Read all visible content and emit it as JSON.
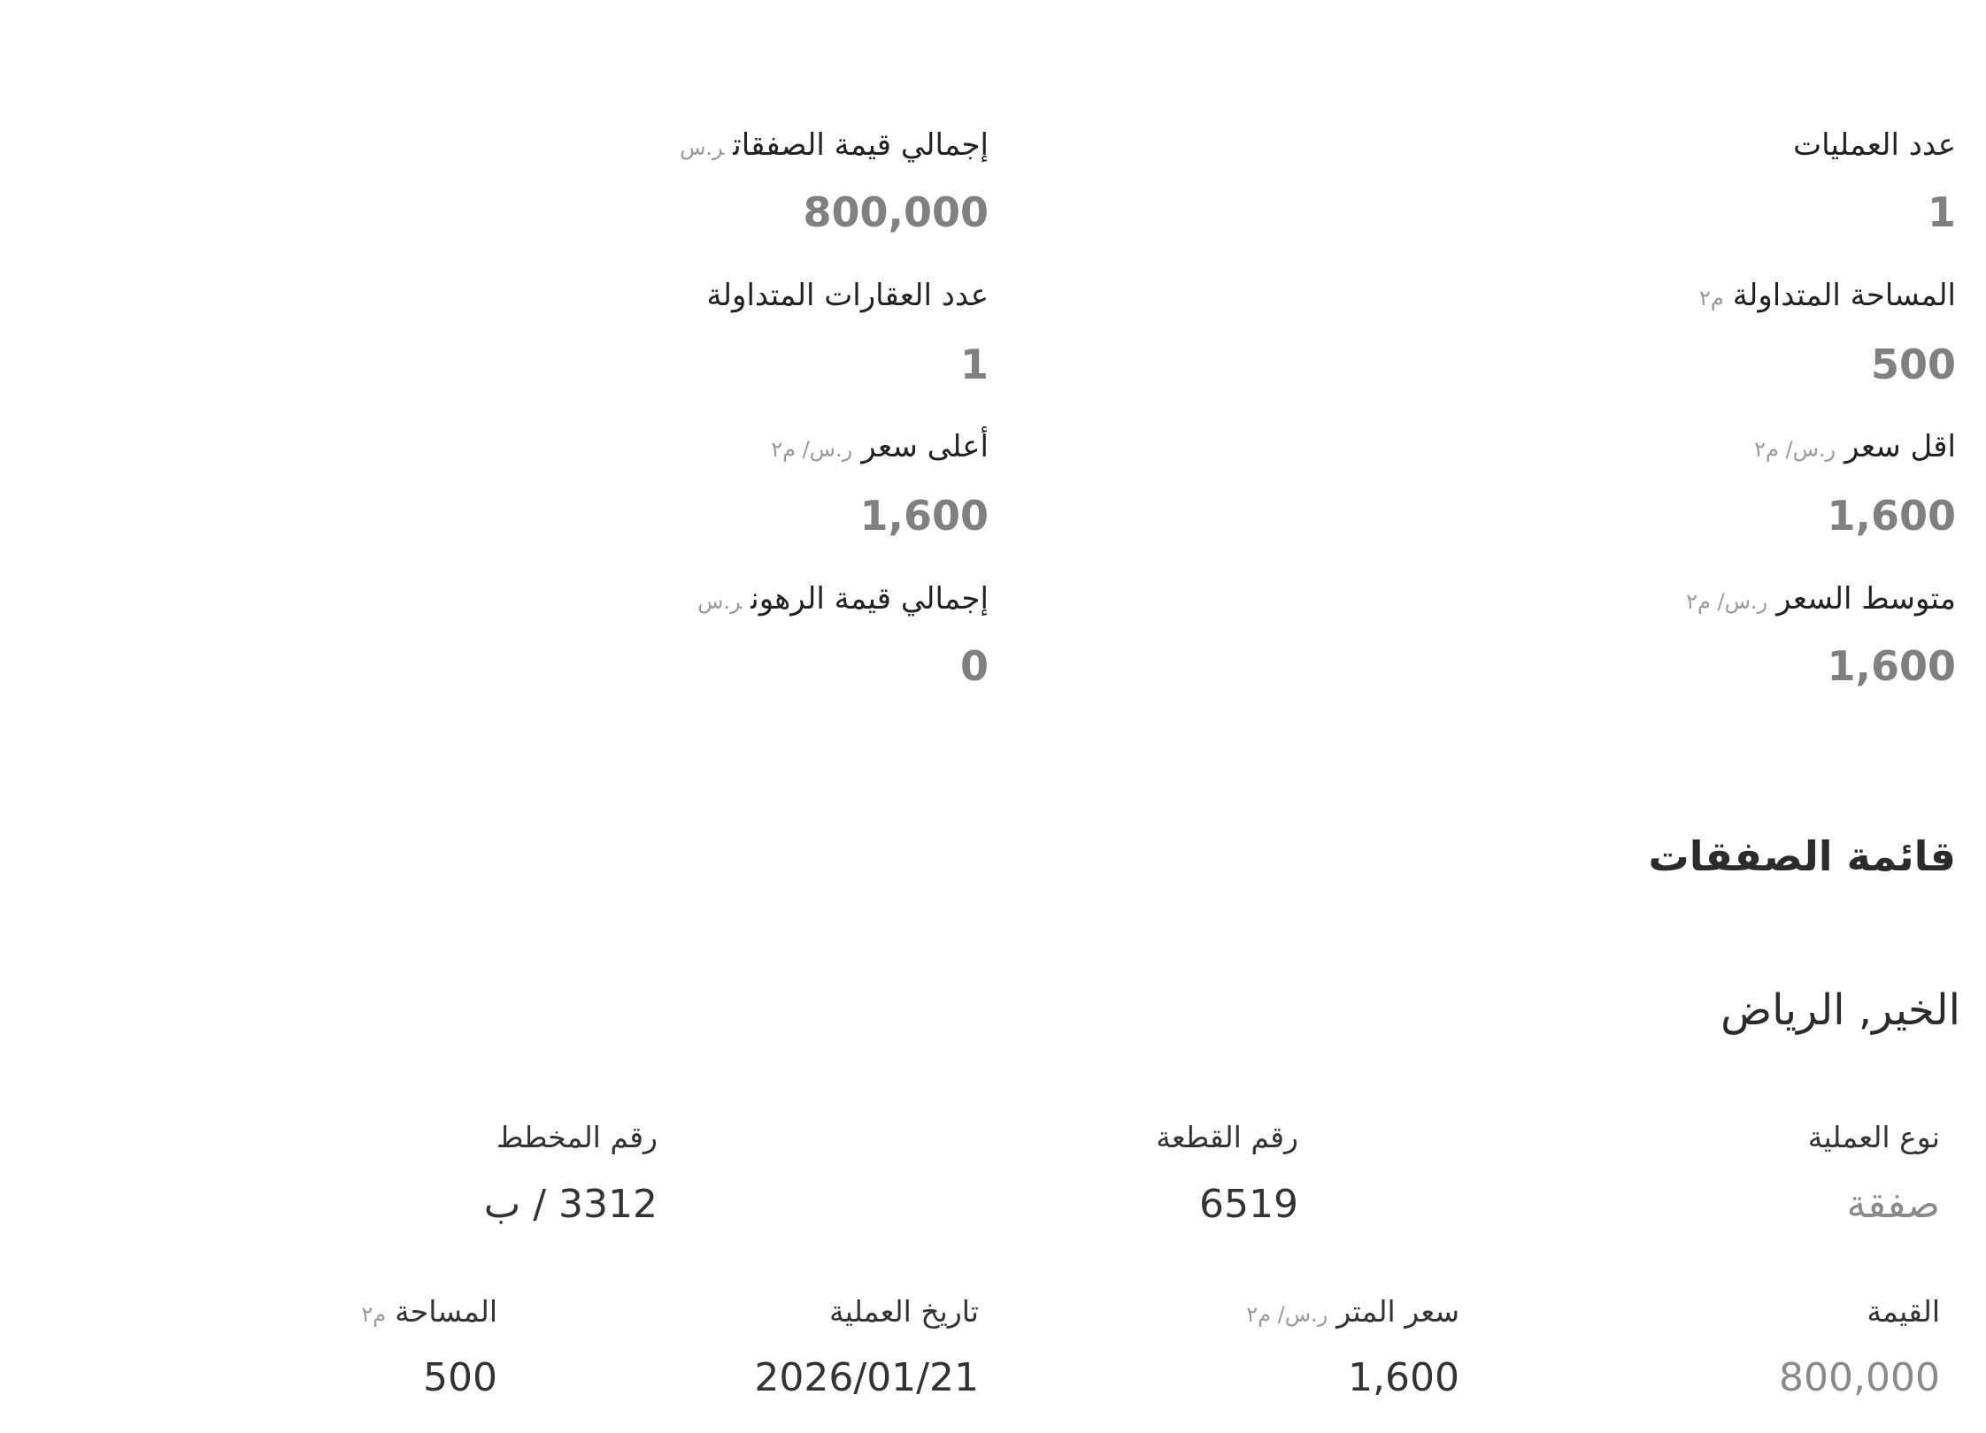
{
  "stats": [
    {
      "label": "عدد العمليات",
      "unit": "",
      "value": "1"
    },
    {
      "label": "إجمالي قيمة الصفقات",
      "unit": "ر.س",
      "value": "800,000"
    },
    {
      "label": "المساحة المتداولة",
      "unit": "م٢",
      "value": "500"
    },
    {
      "label": "عدد العقارات المتداولة",
      "unit": "",
      "value": "1"
    },
    {
      "label": "اقل سعر",
      "unit": "ر.س/ م٢",
      "value": "1,600"
    },
    {
      "label": "أعلى سعر",
      "unit": "ر.س/ م٢",
      "value": "1,600"
    },
    {
      "label": "متوسط السعر",
      "unit": "ر.س/ م٢",
      "value": "1,600"
    },
    {
      "label": "إجمالي قيمة الرهون",
      "unit": "ر.س",
      "value": "0"
    }
  ],
  "deals_heading": "قائمة الصفقات",
  "deal": {
    "location": "الخير, الرياض",
    "fields": [
      {
        "label": "نوع العملية",
        "unit": "",
        "value": "صفقة"
      },
      {
        "label": "رقم القطعة",
        "unit": "",
        "value": "6519"
      },
      {
        "label": "رقم المخطط",
        "unit": "",
        "value": "3312 / ب"
      },
      {
        "label": "القيمة",
        "unit": "",
        "value": "800,000"
      },
      {
        "label": "سعر المتر",
        "unit": "ر.س/ م٢",
        "value": "1,600"
      },
      {
        "label": "تاريخ العملية",
        "unit": "",
        "value": "2026/01/21"
      },
      {
        "label": "المساحة",
        "unit": "م٢",
        "value": "500"
      }
    ]
  }
}
